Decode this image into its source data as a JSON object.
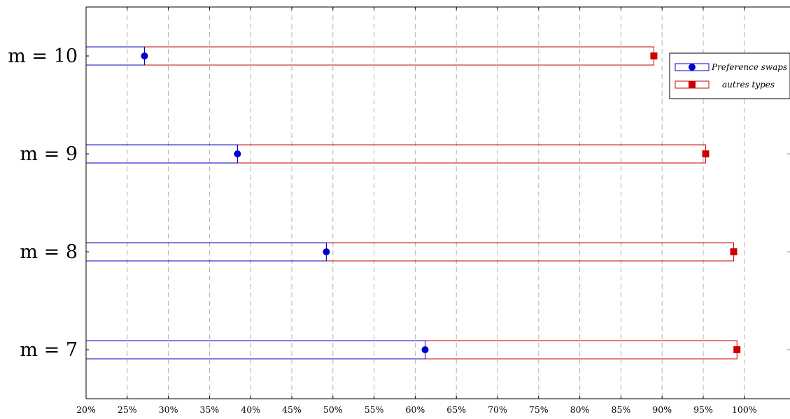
{
  "chart_data": {
    "type": "bar",
    "orientation": "horizontal",
    "title": "",
    "xlabel": "",
    "ylabel": "",
    "xlim": [
      20,
      105
    ],
    "grid": "vertical dashed",
    "legend_position": "top-right",
    "x_ticks": [
      "20%",
      "25%",
      "30%",
      "35%",
      "40%",
      "45%",
      "50%",
      "55%",
      "60%",
      "65%",
      "70%",
      "75%",
      "80%",
      "85%",
      "90%",
      "95%",
      "100%"
    ],
    "x_tick_values": [
      20,
      25,
      30,
      35,
      40,
      45,
      50,
      55,
      60,
      65,
      70,
      75,
      80,
      85,
      90,
      95,
      100
    ],
    "categories": [
      "m = 7",
      "m = 8",
      "m = 9",
      "m = 10"
    ],
    "series": [
      {
        "name": "Preference swaps",
        "color": "#0000cc",
        "marker": "circle",
        "values": [
          61.2,
          49.2,
          38.4,
          27.1
        ]
      },
      {
        "name": "autres types",
        "color": "#cc0000",
        "marker": "square",
        "values": [
          99.1,
          98.7,
          95.3,
          89.0
        ]
      }
    ]
  }
}
